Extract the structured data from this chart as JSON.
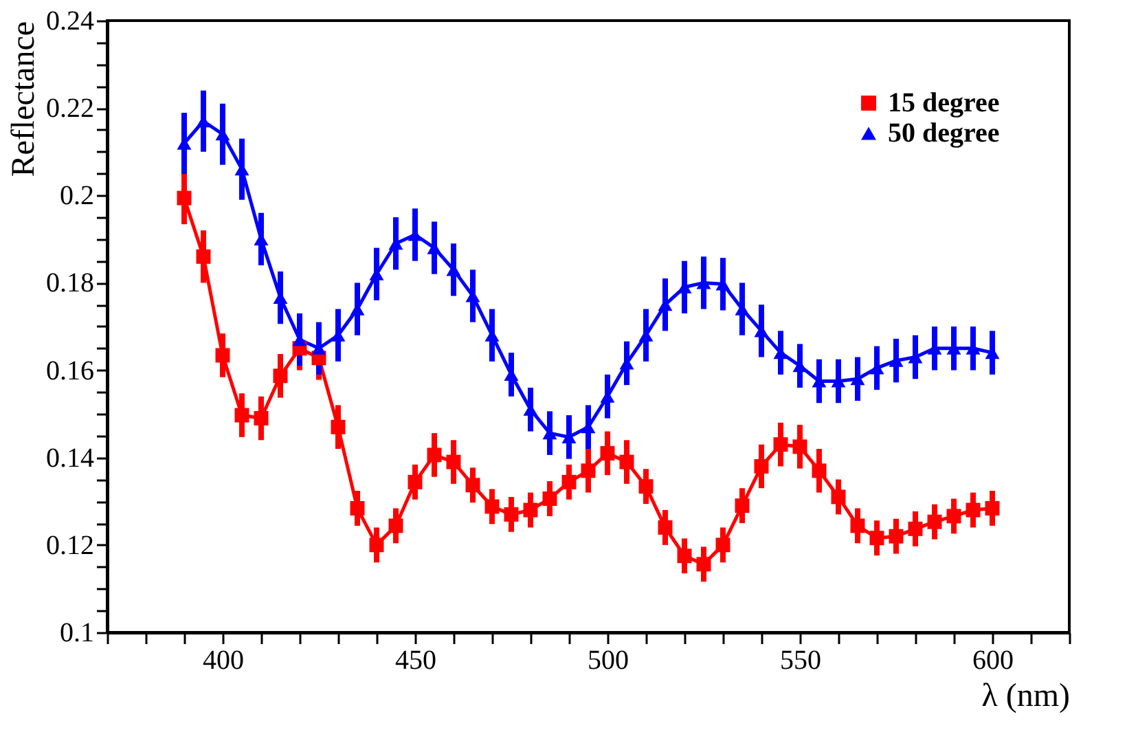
{
  "chart_data": {
    "type": "line",
    "xlabel": "λ (nm)",
    "ylabel": "Reflectance",
    "x": [
      390,
      395,
      400,
      405,
      410,
      415,
      420,
      425,
      430,
      435,
      440,
      445,
      450,
      455,
      460,
      465,
      470,
      475,
      480,
      485,
      490,
      495,
      500,
      505,
      510,
      515,
      520,
      525,
      530,
      535,
      540,
      545,
      550,
      555,
      560,
      565,
      570,
      575,
      580,
      585,
      590,
      595,
      600
    ],
    "series": [
      {
        "name": "15 degree",
        "color": "#ff0000",
        "marker": "square",
        "values": [
          0.1994,
          0.186,
          0.1634,
          0.1497,
          0.149,
          0.1587,
          0.165,
          0.1628,
          0.147,
          0.1284,
          0.12,
          0.1244,
          0.1344,
          0.1406,
          0.139,
          0.1337,
          0.1288,
          0.127,
          0.128,
          0.1306,
          0.1344,
          0.137,
          0.141,
          0.139,
          0.1334,
          0.124,
          0.1175,
          0.1156,
          0.12,
          0.129,
          0.138,
          0.143,
          0.1425,
          0.137,
          0.131,
          0.1244,
          0.1216,
          0.122,
          0.1237,
          0.1253,
          0.1266,
          0.128,
          0.1284
        ],
        "errors": [
          0.006,
          0.006,
          0.005,
          0.005,
          0.005,
          0.005,
          0.005,
          0.005,
          0.005,
          0.004,
          0.004,
          0.004,
          0.004,
          0.005,
          0.005,
          0.004,
          0.004,
          0.004,
          0.004,
          0.004,
          0.004,
          0.005,
          0.005,
          0.005,
          0.004,
          0.004,
          0.004,
          0.004,
          0.004,
          0.004,
          0.005,
          0.005,
          0.005,
          0.005,
          0.004,
          0.004,
          0.004,
          0.004,
          0.004,
          0.004,
          0.004,
          0.004,
          0.004
        ]
      },
      {
        "name": "50 degree",
        "color": "#0000ff",
        "marker": "triangle",
        "values": [
          0.2119,
          0.217,
          0.214,
          0.206,
          0.19,
          0.1766,
          0.167,
          0.165,
          0.168,
          0.174,
          0.182,
          0.189,
          0.191,
          0.188,
          0.183,
          0.177,
          0.168,
          0.159,
          0.151,
          0.1456,
          0.1447,
          0.147,
          0.154,
          0.1616,
          0.168,
          0.175,
          0.179,
          0.18,
          0.1797,
          0.174,
          0.169,
          0.164,
          0.161,
          0.1575,
          0.1575,
          0.158,
          0.1605,
          0.1622,
          0.163,
          0.165,
          0.165,
          0.165,
          0.164
        ],
        "errors": [
          0.007,
          0.007,
          0.007,
          0.007,
          0.006,
          0.006,
          0.006,
          0.006,
          0.006,
          0.006,
          0.006,
          0.006,
          0.006,
          0.006,
          0.006,
          0.006,
          0.006,
          0.005,
          0.005,
          0.005,
          0.005,
          0.005,
          0.005,
          0.005,
          0.006,
          0.006,
          0.006,
          0.006,
          0.006,
          0.006,
          0.006,
          0.005,
          0.005,
          0.005,
          0.005,
          0.005,
          0.005,
          0.005,
          0.005,
          0.005,
          0.005,
          0.005,
          0.005
        ]
      }
    ],
    "xlim": [
      370,
      620
    ],
    "xticks": [
      {
        "value": 370,
        "label": null
      },
      {
        "value": 380,
        "label": null
      },
      {
        "value": 390,
        "label": null
      },
      400,
      {
        "value": 410,
        "label": null
      },
      {
        "value": 420,
        "label": null
      },
      {
        "value": 430,
        "label": null
      },
      {
        "value": 440,
        "label": null
      },
      450,
      {
        "value": 460,
        "label": null
      },
      {
        "value": 470,
        "label": null
      },
      {
        "value": 480,
        "label": null
      },
      {
        "value": 490,
        "label": null
      },
      500,
      {
        "value": 510,
        "label": null
      },
      {
        "value": 520,
        "label": null
      },
      {
        "value": 530,
        "label": null
      },
      {
        "value": 540,
        "label": null
      },
      550,
      {
        "value": 560,
        "label": null
      },
      {
        "value": 570,
        "label": null
      },
      {
        "value": 580,
        "label": null
      },
      {
        "value": 590,
        "label": null
      },
      600,
      {
        "value": 610,
        "label": null
      },
      {
        "value": 620,
        "label": null
      }
    ],
    "ylim": [
      0.1,
      0.24
    ],
    "yticks": [
      0.1,
      {
        "value": 0.105,
        "label": null
      },
      {
        "value": 0.11,
        "label": null
      },
      {
        "value": 0.115,
        "label": null
      },
      0.12,
      {
        "value": 0.125,
        "label": null
      },
      {
        "value": 0.13,
        "label": null
      },
      {
        "value": 0.135,
        "label": null
      },
      0.14,
      {
        "value": 0.145,
        "label": null
      },
      {
        "value": 0.15,
        "label": null
      },
      {
        "value": 0.155,
        "label": null
      },
      0.16,
      {
        "value": 0.165,
        "label": null
      },
      {
        "value": 0.17,
        "label": null
      },
      {
        "value": 0.175,
        "label": null
      },
      0.18,
      {
        "value": 0.185,
        "label": null
      },
      {
        "value": 0.19,
        "label": null
      },
      {
        "value": 0.195,
        "label": null
      },
      0.2,
      {
        "value": 0.205,
        "label": null
      },
      {
        "value": 0.21,
        "label": null
      },
      {
        "value": 0.215,
        "label": null
      },
      0.22,
      {
        "value": 0.225,
        "label": null
      },
      {
        "value": 0.23,
        "label": null
      },
      {
        "value": 0.235,
        "label": null
      },
      0.24
    ],
    "grid": false,
    "legend": "top right",
    "line_style": "solid"
  }
}
